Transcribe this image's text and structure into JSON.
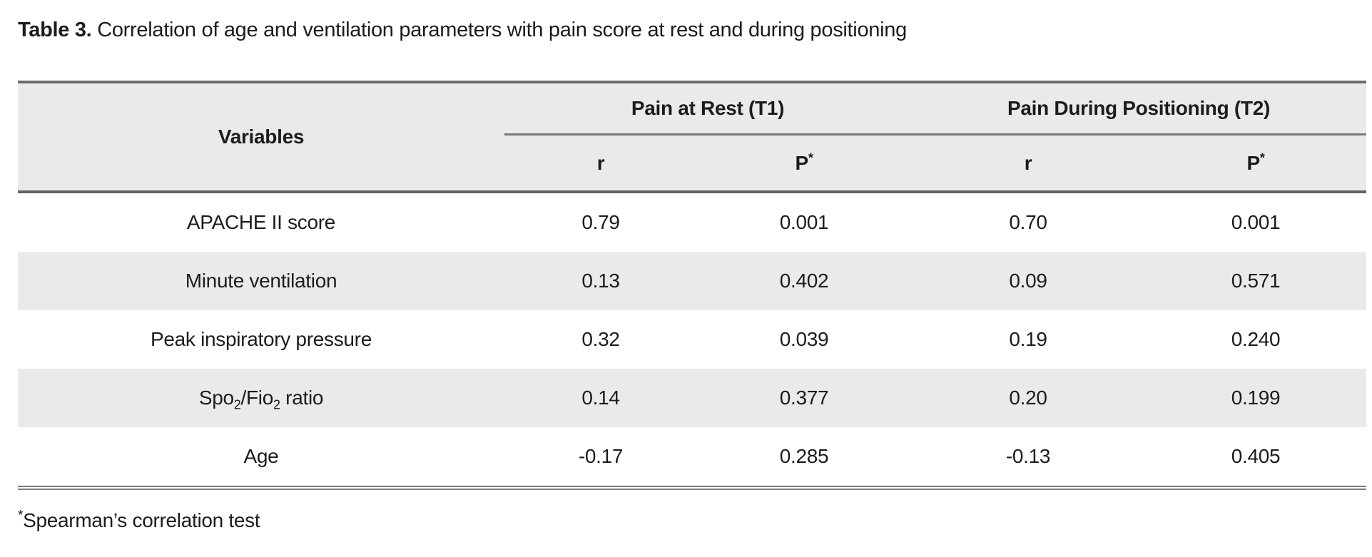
{
  "title": {
    "label": "Table 3.",
    "text": "Correlation of age and ventilation parameters with pain score at rest and during positioning"
  },
  "table": {
    "col_headers": {
      "variables": "Variables",
      "group1": "Pain at Rest (T1)",
      "group2": "Pain During Positioning (T2)",
      "r": "r",
      "p_base": "P",
      "p_sup": "*"
    },
    "rows": [
      {
        "label": "APACHE II score",
        "r1": "0.79",
        "p1": "0.001",
        "r2": "0.70",
        "p2": "0.001"
      },
      {
        "label": "Minute ventilation",
        "r1": "0.13",
        "p1": "0.402",
        "r2": "0.09",
        "p2": "0.571"
      },
      {
        "label": "Peak inspiratory pressure",
        "r1": "0.32",
        "p1": "0.039",
        "r2": "0.19",
        "p2": "0.240"
      },
      {
        "label_parts": {
          "base1": "Spo",
          "sub1": "2",
          "base2": "/Fio",
          "sub2": "2",
          "suffix": " ratio"
        },
        "r1": "0.14",
        "p1": "0.377",
        "r2": "0.20",
        "p2": "0.199"
      },
      {
        "label": "Age",
        "r1": "-0.17",
        "p1": "0.285",
        "r2": "-0.13",
        "p2": "0.405"
      }
    ]
  },
  "footnote": {
    "sup": "*",
    "text": "Spearman’s correlation test"
  },
  "colors": {
    "header_bg": "#eaeaea",
    "zebra_bg": "#eaeaea",
    "rule_dark": "#6d6d6d",
    "rule_mid": "#7a7a7a",
    "text": "#1c1c1c"
  },
  "chart_data": {
    "type": "table",
    "title": "Table 3. Correlation of age and ventilation parameters with pain score at rest and during positioning",
    "column_groups": [
      "Pain at Rest (T1)",
      "Pain During Positioning (T2)"
    ],
    "columns": [
      "Variables",
      "r (T1)",
      "P (T1)",
      "r (T2)",
      "P (T2)"
    ],
    "rows": [
      [
        "APACHE II score",
        0.79,
        0.001,
        0.7,
        0.001
      ],
      [
        "Minute ventilation",
        0.13,
        0.402,
        0.09,
        0.571
      ],
      [
        "Peak inspiratory pressure",
        0.32,
        0.039,
        0.19,
        0.24
      ],
      [
        "Spo2/Fio2 ratio",
        0.14,
        0.377,
        0.2,
        0.199
      ],
      [
        "Age",
        -0.17,
        0.285,
        -0.13,
        0.405
      ]
    ],
    "footnote": "*Spearman's correlation test"
  }
}
